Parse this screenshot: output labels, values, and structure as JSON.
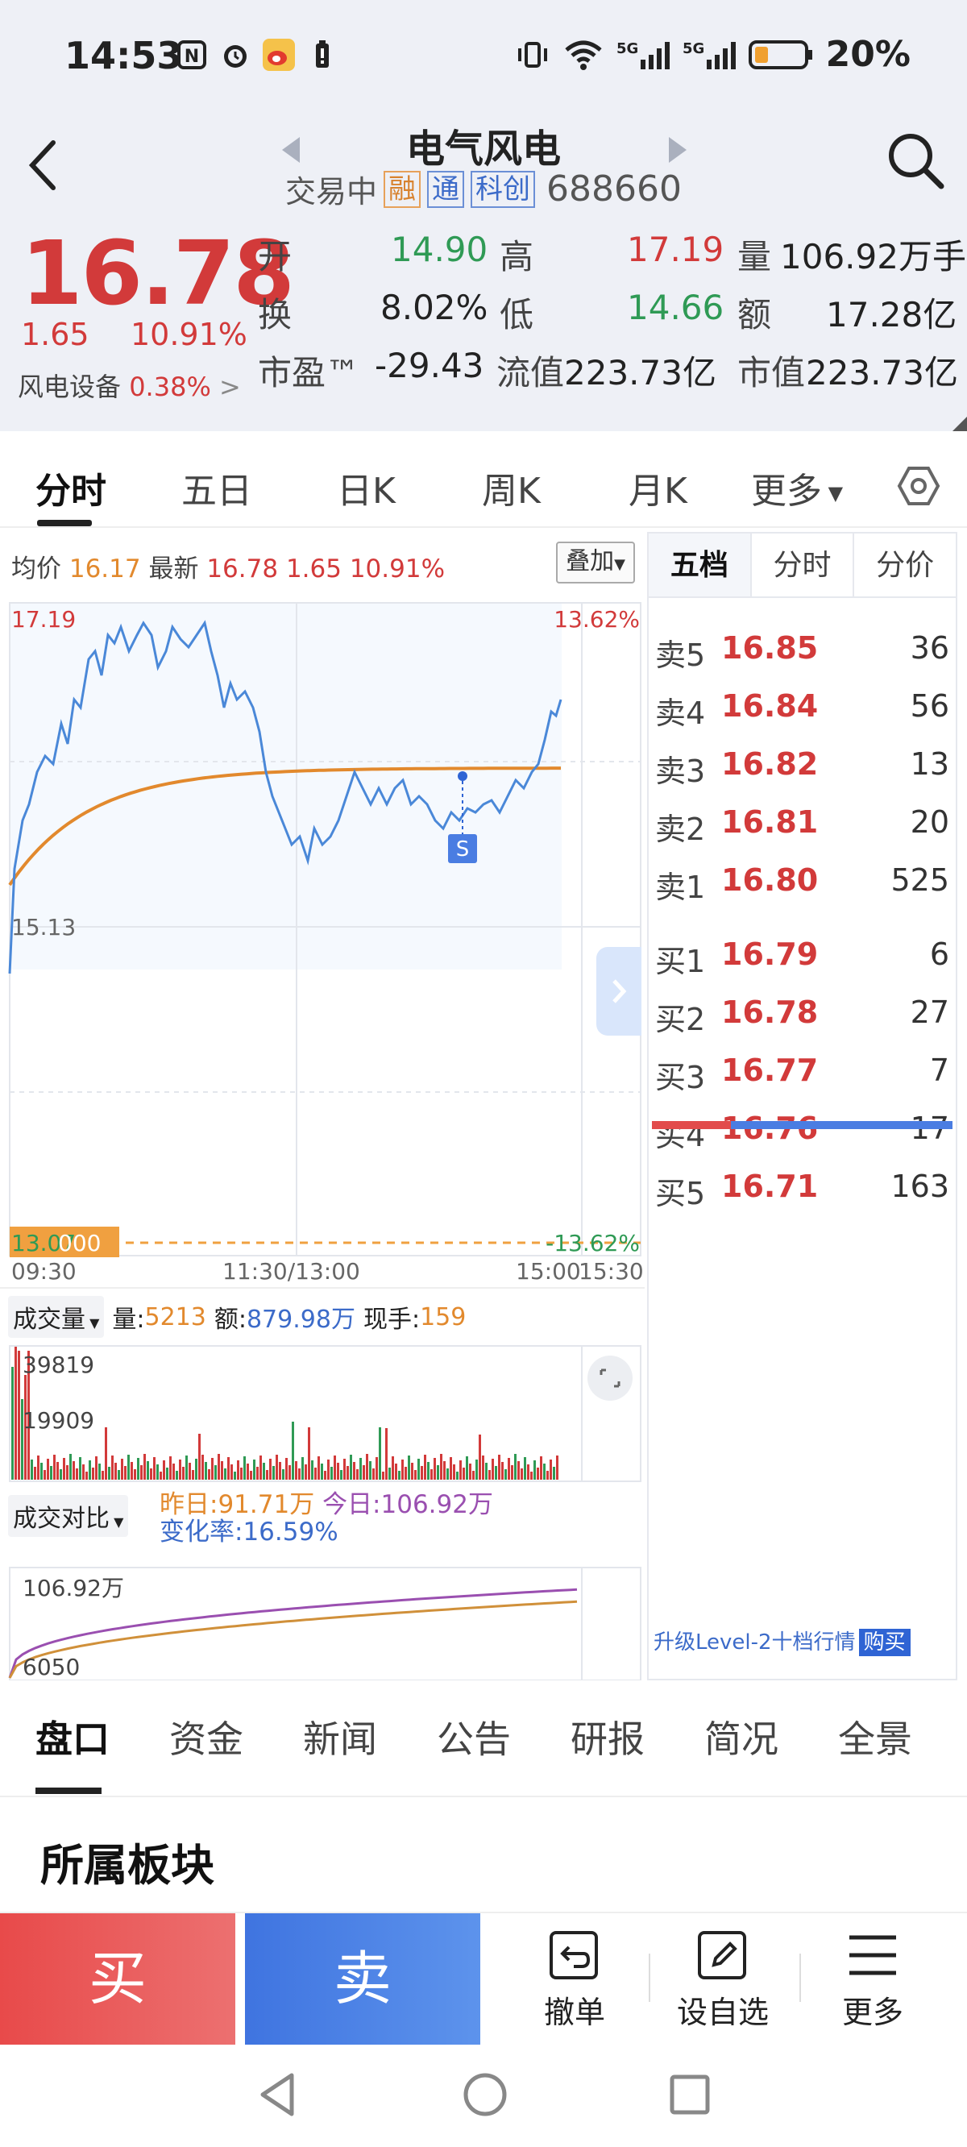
{
  "status_bar": {
    "time": "14:53",
    "battery": "20%",
    "net1": "5G",
    "net2": "5G"
  },
  "header": {
    "title": "电气风电",
    "status": "交易中",
    "tags": [
      "融",
      "通",
      "科创"
    ],
    "code": "688660"
  },
  "quote": {
    "price": "16.78",
    "change": "1.65",
    "change_pct": "10.91%",
    "sector_name": "风电设备",
    "sector_pct": "0.38%",
    "rows": [
      [
        {
          "l": "开",
          "v": "14.90",
          "c": "green"
        },
        {
          "l": "高",
          "v": "17.19",
          "c": "red"
        },
        {
          "l": "量",
          "v": "106.92万手",
          "c": "blk"
        }
      ],
      [
        {
          "l": "换",
          "v": "8.02%",
          "c": "blk"
        },
        {
          "l": "低",
          "v": "14.66",
          "c": "green"
        },
        {
          "l": "额",
          "v": "17.28亿",
          "c": "blk"
        }
      ],
      [
        {
          "l": "市盈™",
          "v": "-29.43",
          "c": "blk"
        },
        {
          "l": "流值",
          "v": "223.73亿",
          "c": "blk"
        },
        {
          "l": "市值",
          "v": "223.73亿",
          "c": "blk"
        }
      ]
    ]
  },
  "main_tabs": [
    "分时",
    "五日",
    "日K",
    "周K",
    "月K",
    "更多"
  ],
  "chart_legend": {
    "avg_label": "均价",
    "avg": "16.17",
    "last_label": "最新",
    "last": "16.78",
    "chg": "1.65",
    "pct": "10.91%",
    "overlay": "叠加"
  },
  "price_axis": {
    "high": "17.19",
    "mid": "15.13",
    "low": "13.07",
    "low_suffix": "000",
    "high_pct": "13.62%",
    "low_pct": "-13.62%"
  },
  "time_axis": [
    "09:30",
    "11:30/13:00",
    "15:00",
    "15:30"
  ],
  "sell_marker": "S",
  "volume_panel": {
    "label": "成交量",
    "qty_label": "量:",
    "qty": "5213",
    "amt_label": "额:",
    "amt": "879.98万",
    "hand_label": "现手:",
    "hand": "159",
    "max": "39819",
    "mid": "19909"
  },
  "compare_panel": {
    "label": "成交对比",
    "yesterday": "昨日:91.71万",
    "today": "今日:106.92万",
    "rate": "变化率:16.59%",
    "top": "106.92万",
    "bottom": "6050"
  },
  "orderbook": {
    "tabs": [
      "五档",
      "分时",
      "分价"
    ],
    "asks": [
      {
        "n": "卖5",
        "p": "16.85",
        "v": "36"
      },
      {
        "n": "卖4",
        "p": "16.84",
        "v": "56"
      },
      {
        "n": "卖3",
        "p": "16.82",
        "v": "13"
      },
      {
        "n": "卖2",
        "p": "16.81",
        "v": "20"
      },
      {
        "n": "卖1",
        "p": "16.80",
        "v": "525"
      }
    ],
    "bids": [
      {
        "n": "买1",
        "p": "16.79",
        "v": "6"
      },
      {
        "n": "买2",
        "p": "16.78",
        "v": "27"
      },
      {
        "n": "买3",
        "p": "16.77",
        "v": "7"
      },
      {
        "n": "买4",
        "p": "16.76",
        "v": "17"
      },
      {
        "n": "买5",
        "p": "16.71",
        "v": "163"
      }
    ],
    "level2": "升级Level-2十档行情",
    "level2_buy": "购买"
  },
  "info_tabs": [
    "盘口",
    "资金",
    "新闻",
    "公告",
    "研报",
    "简况",
    "全景"
  ],
  "section_title": "所属板块",
  "actions": {
    "buy": "买",
    "sell": "卖",
    "cancel": "撤单",
    "watch": "设自选",
    "more": "更多"
  },
  "colors": {
    "up": "#d23a3a",
    "down": "#2f9a55",
    "price_line": "#4a88d8",
    "avg_line": "#e2892d",
    "buy": "#e84a4a",
    "sell": "#3f74e0"
  }
}
